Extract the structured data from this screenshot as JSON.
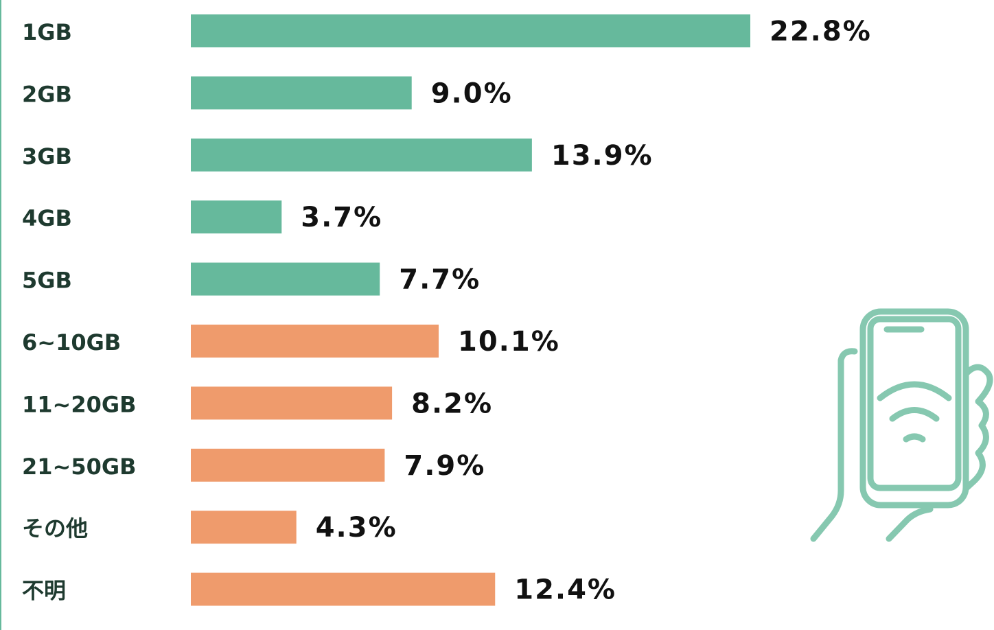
{
  "chart_data": {
    "type": "bar",
    "categories": [
      "1GB",
      "2GB",
      "3GB",
      "4GB",
      "5GB",
      "6~10GB",
      "11~20GB",
      "21~50GB",
      "その他",
      "不明"
    ],
    "values": [
      22.8,
      9.0,
      13.9,
      3.7,
      7.7,
      10.1,
      8.2,
      7.9,
      4.3,
      12.4
    ],
    "value_labels": [
      "22.8%",
      "9.0%",
      "13.9%",
      "3.7%",
      "7.7%",
      "10.1%",
      "8.2%",
      "7.9%",
      "4.3%",
      "12.4%"
    ],
    "colors": [
      "#66b99c",
      "#66b99c",
      "#66b99c",
      "#66b99c",
      "#66b99c",
      "#ef9b6c",
      "#ef9b6c",
      "#ef9b6c",
      "#ef9b6c",
      "#ef9b6c"
    ]
  }
}
